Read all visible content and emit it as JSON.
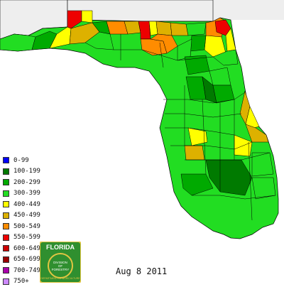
{
  "map": {
    "date": "Aug 8 2011",
    "legend": [
      {
        "label": "0-99",
        "color": "#0000ff"
      },
      {
        "label": "100-199",
        "color": "#007a00"
      },
      {
        "label": "200-299",
        "color": "#00aa00"
      },
      {
        "label": "300-399",
        "color": "#22dd22"
      },
      {
        "label": "400-449",
        "color": "#ffff00"
      },
      {
        "label": "450-499",
        "color": "#ddb100"
      },
      {
        "label": "500-549",
        "color": "#ff8c00"
      },
      {
        "label": "550-599",
        "color": "#ee0000"
      },
      {
        "label": "600-649",
        "color": "#cc0000"
      },
      {
        "label": "650-699",
        "color": "#990000"
      },
      {
        "label": "700-749",
        "color": "#aa00aa"
      },
      {
        "label": "750+",
        "color": "#cc88ff"
      }
    ],
    "colors": {
      "land_default": "#22dd22",
      "neighbor_state": "#eeeeee",
      "county_border": "#000000",
      "logo_green": "#2f8f2f",
      "logo_gold": "#e1c542"
    },
    "logo": {
      "top_text": "FLORIDA",
      "ring_text": "DEPARTMENT OF AGRICULTURE",
      "center_line1": "DIVISION",
      "center_line2": "OF",
      "center_line3": "FORESTRY"
    }
  }
}
